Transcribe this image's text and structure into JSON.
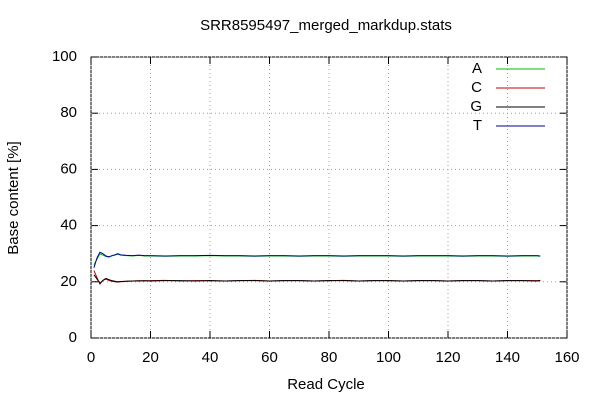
{
  "chart_data": {
    "type": "line",
    "title": "SRR8595497_merged_markdup.stats",
    "x_label": "Read Cycle",
    "y_label": "Base content [%]",
    "x": [
      1,
      2,
      3,
      4,
      5,
      6,
      7,
      8,
      9,
      10,
      12,
      14,
      16,
      18,
      20,
      25,
      30,
      35,
      40,
      45,
      50,
      55,
      60,
      65,
      70,
      75,
      80,
      85,
      90,
      95,
      100,
      105,
      110,
      115,
      120,
      125,
      130,
      135,
      140,
      145,
      150,
      151
    ],
    "series": [
      {
        "name": "A",
        "color": "#00c000",
        "values": [
          26,
          28,
          30,
          29.5,
          29,
          28.8,
          29.2,
          29.5,
          29.8,
          29.5,
          29.3,
          29.2,
          29.4,
          29.2,
          29.2,
          29.1,
          29.2,
          29.2,
          29.3,
          29.2,
          29.2,
          29.1,
          29.2,
          29.2,
          29.1,
          29.2,
          29.2,
          29.1,
          29.2,
          29.2,
          29.2,
          29.1,
          29.2,
          29.2,
          29.2,
          29.1,
          29.2,
          29.2,
          29.1,
          29.2,
          29.2,
          29.1
        ]
      },
      {
        "name": "C",
        "color": "#c00000",
        "values": [
          24,
          21.5,
          19.2,
          20.5,
          21,
          20.5,
          20.2,
          20,
          19.9,
          20,
          20.2,
          20.3,
          20.4,
          20.3,
          20.4,
          20.5,
          20.3,
          20.4,
          20.4,
          20.3,
          20.4,
          20.5,
          20.3,
          20.4,
          20.4,
          20.3,
          20.4,
          20.5,
          20.3,
          20.4,
          20.4,
          20.3,
          20.4,
          20.4,
          20.3,
          20.4,
          20.4,
          20.3,
          20.4,
          20.4,
          20.4,
          20.5
        ]
      },
      {
        "name": "G",
        "color": "#000000",
        "values": [
          22.5,
          21,
          19.5,
          20.5,
          21.2,
          20.8,
          20.4,
          20.2,
          20,
          20.1,
          20.2,
          20.3,
          20.3,
          20.4,
          20.3,
          20.4,
          20.4,
          20.3,
          20.4,
          20.3,
          20.4,
          20.4,
          20.3,
          20.4,
          20.4,
          20.3,
          20.4,
          20.4,
          20.3,
          20.4,
          20.4,
          20.3,
          20.4,
          20.4,
          20.3,
          20.4,
          20.4,
          20.3,
          20.4,
          20.4,
          20.3,
          20.4
        ]
      },
      {
        "name": "T",
        "color": "#0000a0",
        "values": [
          25,
          28.5,
          30.5,
          30,
          29.2,
          28.9,
          29.3,
          29.6,
          30,
          29.6,
          29.4,
          29.3,
          29.5,
          29.3,
          29.3,
          29.2,
          29.3,
          29.3,
          29.4,
          29.3,
          29.3,
          29.2,
          29.3,
          29.3,
          29.2,
          29.3,
          29.3,
          29.2,
          29.3,
          29.3,
          29.3,
          29.2,
          29.3,
          29.3,
          29.3,
          29.2,
          29.3,
          29.3,
          29.2,
          29.3,
          29.3,
          29.2
        ]
      }
    ],
    "xlim": [
      0,
      160
    ],
    "xticks": [
      0,
      20,
      40,
      60,
      80,
      100,
      120,
      140,
      160
    ],
    "ylim": [
      0,
      100
    ],
    "yticks": [
      0,
      20,
      40,
      60,
      80,
      100
    ],
    "grid": true,
    "legend": "top-right"
  }
}
